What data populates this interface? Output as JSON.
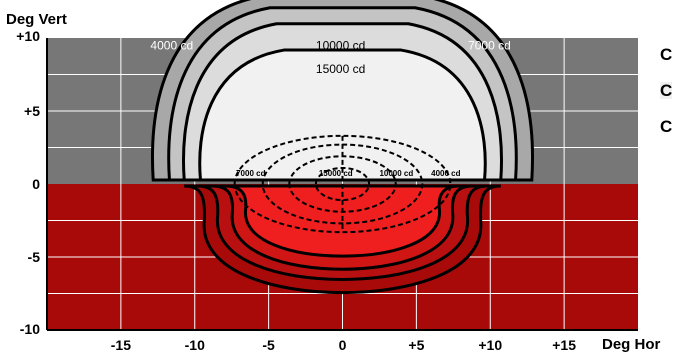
{
  "chart_data": {
    "type": "contour",
    "xlabel": "Deg Hor",
    "ylabel": "Deg Vert",
    "xlim": [
      -20,
      20
    ],
    "ylim": [
      -10,
      10
    ],
    "xticks": [
      {
        "value": -15,
        "label": "-15"
      },
      {
        "value": -10,
        "label": "-10"
      },
      {
        "value": -5,
        "label": "-5"
      },
      {
        "value": 0,
        "label": "0"
      },
      {
        "value": 5,
        "label": "+5"
      },
      {
        "value": 10,
        "label": "+10"
      },
      {
        "value": 15,
        "label": "+15"
      }
    ],
    "yticks": [
      {
        "value": 10,
        "label": "+10"
      },
      {
        "value": 5,
        "label": "+5"
      },
      {
        "value": 0,
        "label": "0"
      },
      {
        "value": -5,
        "label": "-5"
      },
      {
        "value": -10,
        "label": "-10"
      }
    ],
    "grid": true,
    "regions": {
      "upper_color": "#777777",
      "lower_color": "#a80a0a"
    },
    "upper_labels": [
      {
        "text": "4000 cd",
        "x": -13,
        "y": 9.2
      },
      {
        "text": "10000 cd",
        "x": -1.8,
        "y": 9.2
      },
      {
        "text": "7000 cd",
        "x": 8.5,
        "y": 9.2
      },
      {
        "text": "15000 cd",
        "x": -1.8,
        "y": 7.6
      }
    ],
    "lower_labels": [
      {
        "text": "7000 cd",
        "x": -7.2,
        "y": 0.55
      },
      {
        "text": "15000 cd",
        "x": -1.6,
        "y": 0.55
      },
      {
        "text": "10000 cd",
        "x": 2.5,
        "y": 0.55
      },
      {
        "text": "4000 cd",
        "x": 6.0,
        "y": 0.55
      }
    ],
    "upper_isocandela": [
      {
        "name": "4000 cd",
        "fill": "#a8a8a8",
        "dome_x": 12,
        "dome_y": 12.6
      },
      {
        "name": "7000 cd",
        "fill": "#c4c4c4",
        "dome_x": 10.9,
        "dome_y": 11.8
      },
      {
        "name": "10000 cd",
        "fill": "#dcdcdc",
        "dome_x": 9.9,
        "dome_y": 10.7
      },
      {
        "name": "15000 cd",
        "fill": "#f1f1f1",
        "dome_x": 8.8,
        "dome_y": 8.9
      }
    ],
    "lower_isocandela": [
      {
        "name": "4000 cd",
        "width": 9.5,
        "depth": 7.3,
        "fill": "#a80a0a"
      },
      {
        "name": "7000 cd",
        "width": 8.6,
        "depth": 6.4,
        "fill": "#b81010"
      },
      {
        "name": "10000 cd",
        "width": 7.6,
        "depth": 5.7,
        "fill": "#d01515"
      },
      {
        "name": "15000 cd",
        "width": 6.7,
        "depth": 4.8,
        "fill": "#f01f1f"
      }
    ],
    "center_dashed": [
      {
        "name": "15000 cd",
        "rx": 7.3,
        "top": 3.3,
        "bottom": -3.3
      },
      {
        "name": "10000 cd",
        "rx": 5.4,
        "top": 2.7,
        "bottom": -2.7
      },
      {
        "name": "7000 cd",
        "rx": 3.6,
        "top": 1.9,
        "bottom": -1.9
      },
      {
        "name": "4000 cd",
        "rx": 1.8,
        "top": 1.1,
        "bottom": -1.1
      }
    ]
  },
  "side_text": [
    "C",
    "C",
    "C"
  ]
}
